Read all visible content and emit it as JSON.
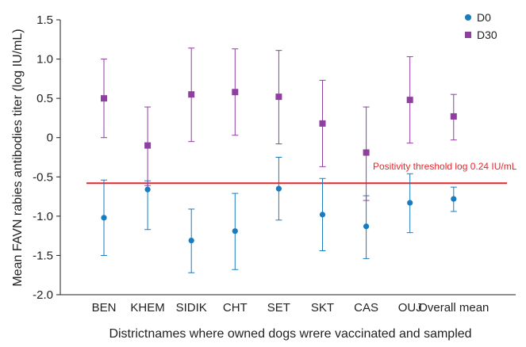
{
  "chart_data": {
    "type": "scatter",
    "title": "",
    "xlabel": "Districtnames where owned dogs wrere vaccinated and sampled",
    "ylabel": "Mean FAVN rabies antibodies titer (log IU/mL)",
    "categories": [
      "BEN",
      "KHEM",
      "SIDIK",
      "CHT",
      "SET",
      "SKT",
      "CAS",
      "OUJ",
      "Overall mean"
    ],
    "ylim": [
      -2.0,
      1.5
    ],
    "yticks": [
      "-2.0",
      "-1.5",
      "-1.0",
      "-0.5",
      "0",
      "0.5",
      "1.0",
      "1.5"
    ],
    "grid": false,
    "legend_position": "top-right",
    "series": [
      {
        "name": "D0",
        "color": "#1a7bbf",
        "marker": "circle",
        "values": [
          -1.02,
          -0.66,
          -1.31,
          -1.19,
          -0.65,
          -0.98,
          -1.13,
          -0.83,
          -0.78
        ],
        "err_low": [
          -1.5,
          -1.17,
          -1.72,
          -1.68,
          -1.05,
          -1.44,
          -1.54,
          -1.21,
          -0.94
        ],
        "err_high": [
          -0.54,
          -0.55,
          -0.91,
          -0.71,
          -0.25,
          -0.52,
          -0.74,
          -0.46,
          -0.63
        ]
      },
      {
        "name": "D30",
        "color": "#8e3fa0",
        "marker": "square",
        "values": [
          0.5,
          -0.1,
          0.55,
          0.58,
          0.52,
          0.18,
          -0.19,
          0.48,
          0.27
        ],
        "err_low": [
          0.0,
          -0.61,
          -0.05,
          0.03,
          -0.08,
          -0.37,
          -0.8,
          -0.07,
          -0.03
        ],
        "err_high": [
          1.0,
          0.39,
          1.14,
          1.13,
          1.11,
          0.73,
          0.39,
          1.03,
          0.55
        ]
      }
    ],
    "reference_line": {
      "value": -0.58,
      "color": "#e8262b",
      "label": "Positivity threshold log 0.24 IU/mL"
    }
  }
}
